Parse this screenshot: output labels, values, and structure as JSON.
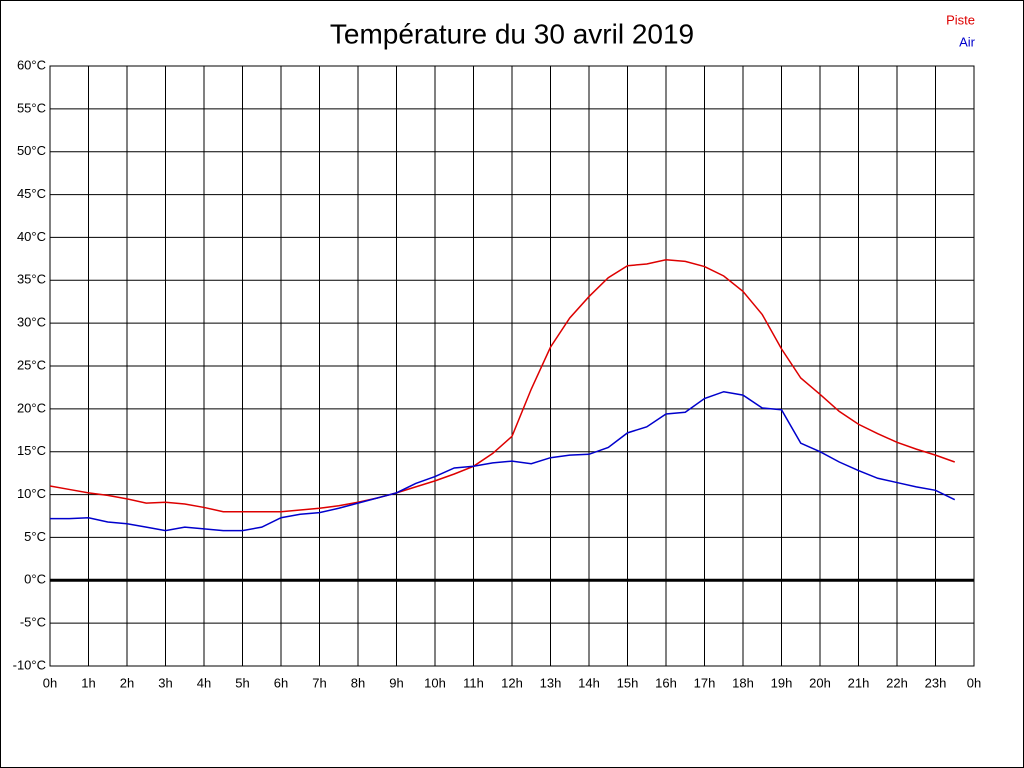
{
  "chart_data": {
    "type": "line",
    "title": "Température du 30 avril 2019",
    "x": [
      0,
      0.5,
      1,
      1.5,
      2,
      2.5,
      3,
      3.5,
      4,
      4.5,
      5,
      5.5,
      6,
      6.5,
      7,
      7.5,
      8,
      8.5,
      9,
      9.5,
      10,
      10.5,
      11,
      11.5,
      12,
      12.5,
      13,
      13.5,
      14,
      14.5,
      15,
      15.5,
      16,
      16.5,
      17,
      17.5,
      18,
      18.5,
      19,
      19.5,
      20,
      20.5,
      21,
      21.5,
      22,
      22.5,
      23,
      23.5
    ],
    "series": [
      {
        "name": "Piste",
        "color": "#dd0000",
        "values": [
          11.0,
          10.6,
          10.2,
          9.9,
          9.5,
          9.0,
          9.1,
          8.9,
          8.5,
          8.0,
          8.0,
          8.0,
          8.0,
          8.2,
          8.4,
          8.7,
          9.1,
          9.6,
          10.2,
          10.9,
          11.6,
          12.4,
          13.3,
          14.8,
          16.8,
          22.3,
          27.2,
          30.6,
          33.1,
          35.3,
          36.7,
          36.9,
          37.4,
          37.2,
          36.6,
          35.5,
          33.7,
          31.0,
          27.0,
          23.6,
          21.7,
          19.7,
          18.2,
          17.1,
          16.1,
          15.3,
          14.6,
          13.8
        ]
      },
      {
        "name": "Air",
        "color": "#0000cc",
        "values": [
          7.2,
          7.2,
          7.3,
          6.8,
          6.6,
          6.2,
          5.8,
          6.2,
          6.0,
          5.8,
          5.8,
          6.2,
          7.3,
          7.7,
          7.9,
          8.4,
          9.0,
          9.6,
          10.2,
          11.3,
          12.1,
          13.1,
          13.3,
          13.7,
          13.9,
          13.6,
          14.3,
          14.6,
          14.7,
          15.5,
          17.2,
          17.9,
          19.4,
          19.6,
          21.2,
          22.0,
          21.6,
          20.1,
          19.9,
          16.0,
          15.0,
          13.8,
          12.8,
          11.9,
          11.4,
          10.9,
          10.5,
          9.4
        ]
      }
    ],
    "xlim": [
      0,
      24
    ],
    "xticks": [
      {
        "value": 0,
        "label": "0h"
      },
      {
        "value": 1,
        "label": "1h"
      },
      {
        "value": 2,
        "label": "2h"
      },
      {
        "value": 3,
        "label": "3h"
      },
      {
        "value": 4,
        "label": "4h"
      },
      {
        "value": 5,
        "label": "5h"
      },
      {
        "value": 6,
        "label": "6h"
      },
      {
        "value": 7,
        "label": "7h"
      },
      {
        "value": 8,
        "label": "8h"
      },
      {
        "value": 9,
        "label": "9h"
      },
      {
        "value": 10,
        "label": "10h"
      },
      {
        "value": 11,
        "label": "11h"
      },
      {
        "value": 12,
        "label": "12h"
      },
      {
        "value": 13,
        "label": "13h"
      },
      {
        "value": 14,
        "label": "14h"
      },
      {
        "value": 15,
        "label": "15h"
      },
      {
        "value": 16,
        "label": "16h"
      },
      {
        "value": 17,
        "label": "17h"
      },
      {
        "value": 18,
        "label": "18h"
      },
      {
        "value": 19,
        "label": "19h"
      },
      {
        "value": 20,
        "label": "20h"
      },
      {
        "value": 21,
        "label": "21h"
      },
      {
        "value": 22,
        "label": "22h"
      },
      {
        "value": 23,
        "label": "23h"
      },
      {
        "value": 24,
        "label": "0h"
      }
    ],
    "ylim": [
      -10,
      60
    ],
    "yticks": [
      {
        "value": 60,
        "label": "60°C"
      },
      {
        "value": 55,
        "label": "55°C"
      },
      {
        "value": 50,
        "label": "50°C"
      },
      {
        "value": 45,
        "label": "45°C"
      },
      {
        "value": 40,
        "label": "40°C"
      },
      {
        "value": 35,
        "label": "35°C"
      },
      {
        "value": 30,
        "label": "30°C"
      },
      {
        "value": 25,
        "label": "25°C"
      },
      {
        "value": 20,
        "label": "20°C"
      },
      {
        "value": 15,
        "label": "15°C"
      },
      {
        "value": 10,
        "label": "10°C"
      },
      {
        "value": 5,
        "label": "5°C"
      },
      {
        "value": 0,
        "label": "0°C"
      },
      {
        "value": -5,
        "label": "-5°C"
      },
      {
        "value": -10,
        "label": "-10°C"
      }
    ],
    "grid": true,
    "legend": "top-right"
  }
}
